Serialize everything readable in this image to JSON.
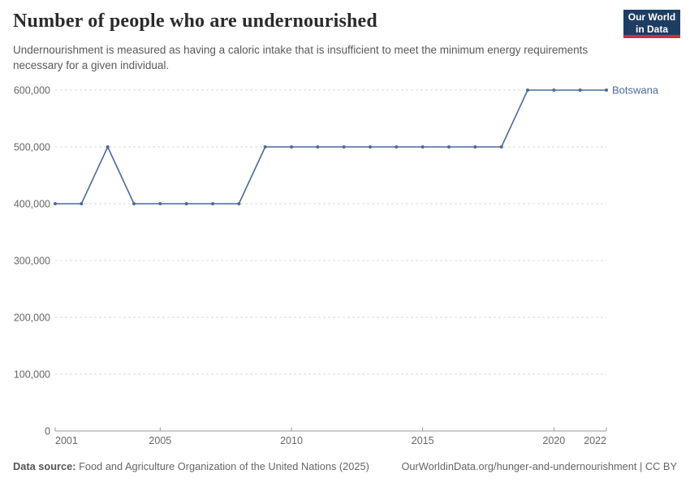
{
  "header": {
    "title": "Number of people who are undernourished",
    "subtitle": "Undernourishment is measured as having a caloric intake that is insufficient to meet the minimum energy requirements necessary for a given individual.",
    "logo": {
      "line1": "Our World",
      "line2": "in Data"
    }
  },
  "chart_data": {
    "type": "line",
    "title": "Number of people who are undernourished",
    "x": [
      2001,
      2002,
      2003,
      2004,
      2005,
      2006,
      2007,
      2008,
      2009,
      2010,
      2011,
      2012,
      2013,
      2014,
      2015,
      2016,
      2017,
      2018,
      2019,
      2020,
      2021,
      2022
    ],
    "series": [
      {
        "name": "Botswana",
        "color": "#4c6a9c",
        "values": [
          400000,
          400000,
          500000,
          400000,
          400000,
          400000,
          400000,
          400000,
          500000,
          500000,
          500000,
          500000,
          500000,
          500000,
          500000,
          500000,
          500000,
          500000,
          600000,
          600000,
          600000,
          600000
        ]
      }
    ],
    "xlabel": "",
    "ylabel": "",
    "ylim": [
      0,
      600000
    ],
    "yticks": [
      0,
      100000,
      200000,
      300000,
      400000,
      500000,
      600000
    ],
    "xticks": [
      2001,
      2005,
      2010,
      2015,
      2020,
      2022
    ],
    "grid": "horizontal-dashed",
    "legend_position": "right-of-line-end"
  },
  "colors": {
    "accent_line": "#4c6a9c",
    "grid": "#d9d9d9",
    "axis": "#999999",
    "tick_text": "#666666",
    "logo_bg": "#1d3d63",
    "logo_stripe": "#cd2e41"
  },
  "footer": {
    "datasource_label": "Data source:",
    "datasource_value": "Food and Agriculture Organization of the United Nations (2025)",
    "rights": "OurWorldinData.org/hunger-and-undernourishment | CC BY"
  }
}
